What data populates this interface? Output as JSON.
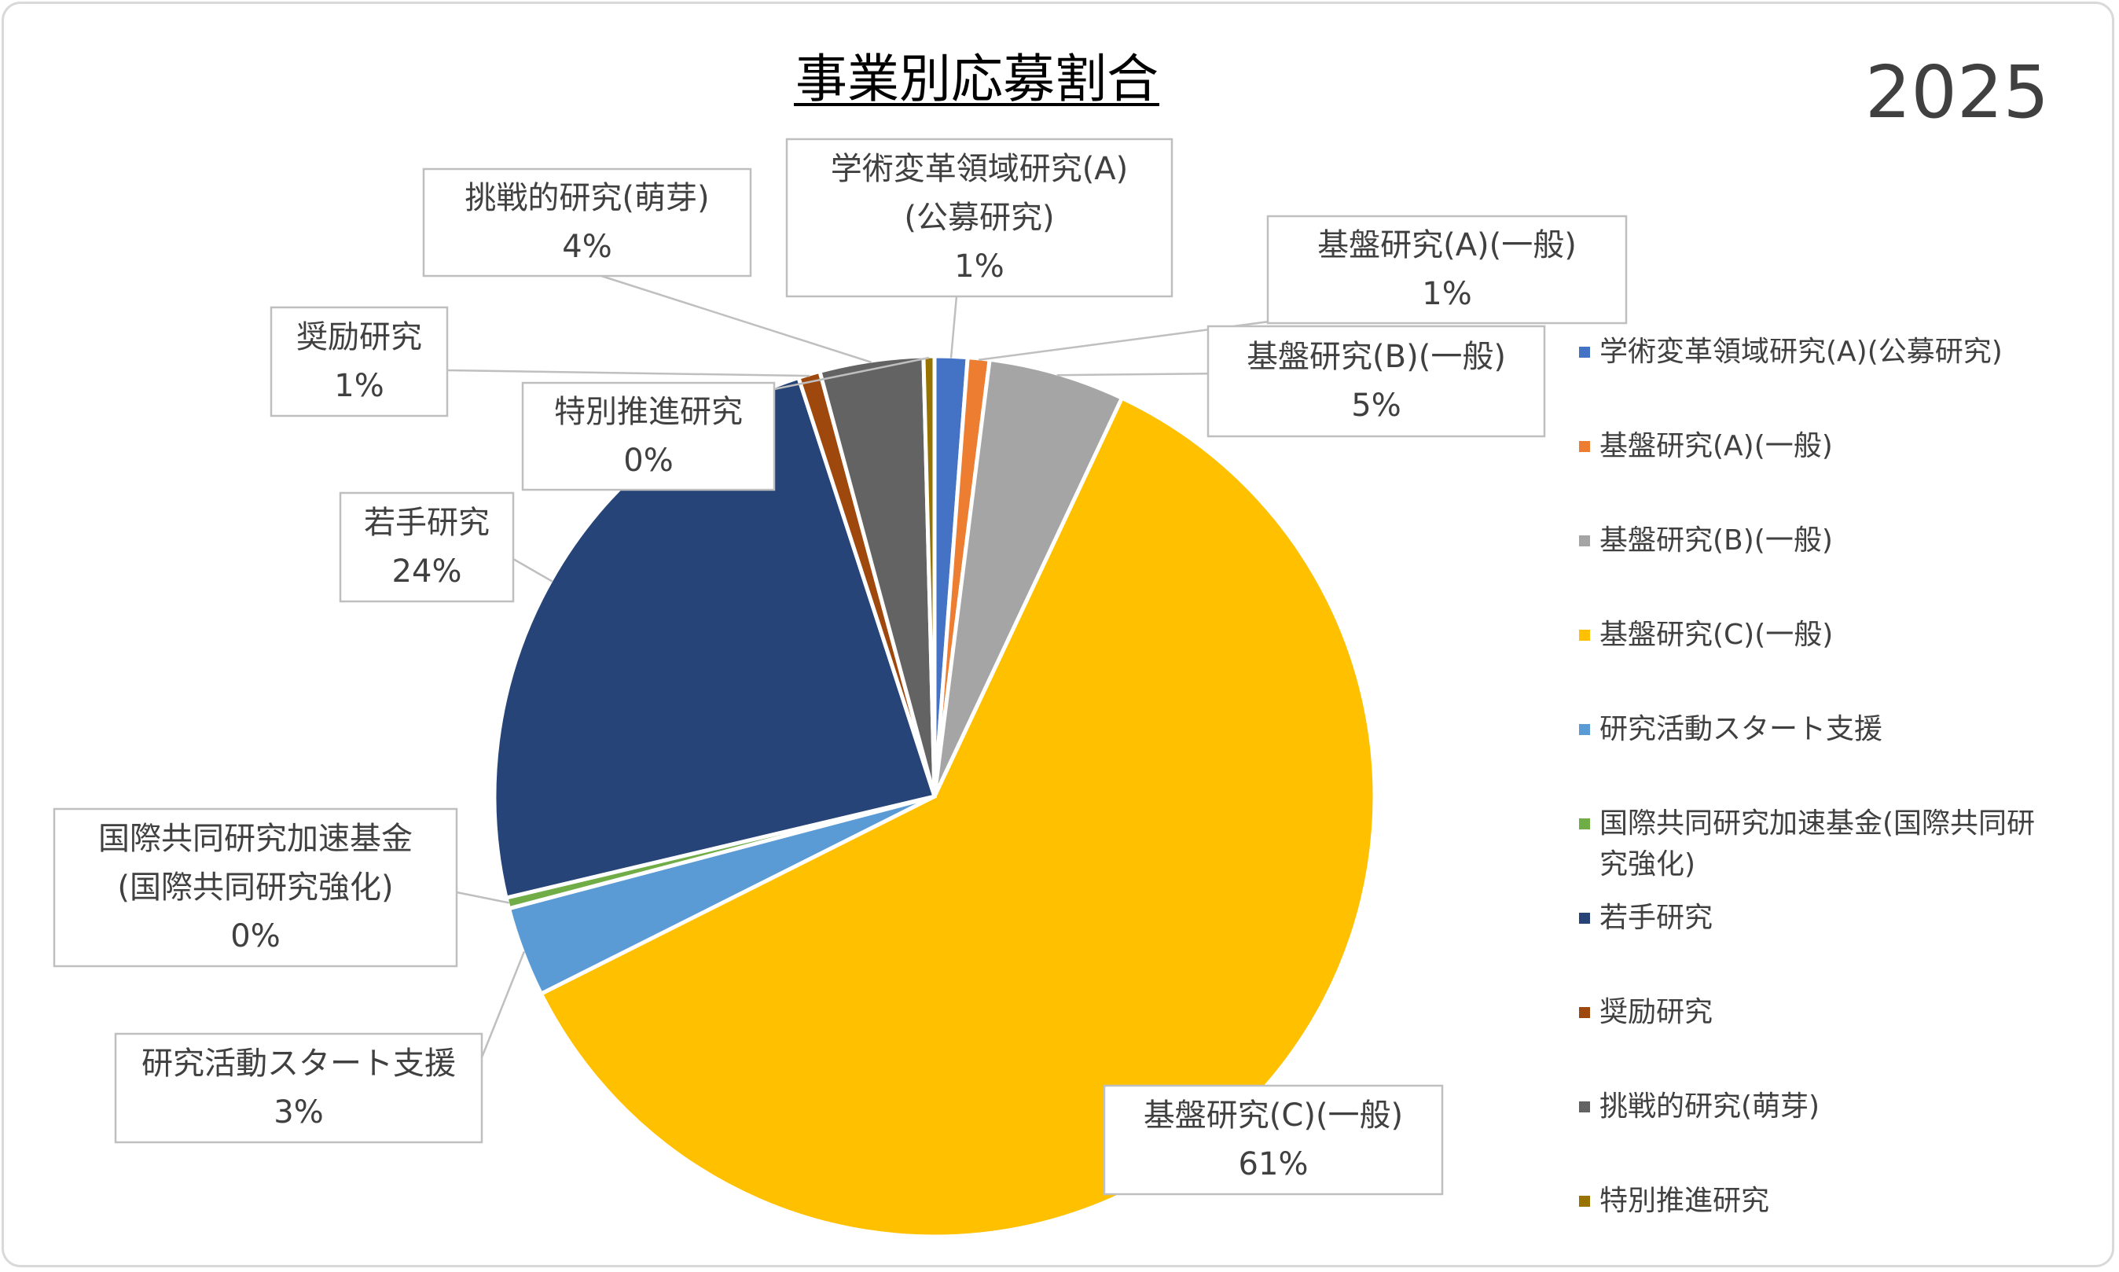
{
  "chart_data": {
    "type": "pie",
    "title": "事業別応募割合",
    "year": "2025",
    "legend_position": "right",
    "data_labels": "category-and-percent",
    "slices": [
      {
        "category": "学術変革領域研究(A)(公募研究)",
        "label_line1": "学術変革領域研究(A)",
        "label_line2": "(公募研究)",
        "value": 1.2,
        "percent_label": "1%",
        "color": "#4472c4"
      },
      {
        "category": "基盤研究(A)(一般)",
        "label_line1": "基盤研究(A)(一般)",
        "label_line2": "",
        "value": 0.8,
        "percent_label": "1%",
        "color": "#ed7d31"
      },
      {
        "category": "基盤研究(B)(一般)",
        "label_line1": "基盤研究(B)(一般)",
        "label_line2": "",
        "value": 5.0,
        "percent_label": "5%",
        "color": "#a5a5a5"
      },
      {
        "category": "基盤研究(C)(一般)",
        "label_line1": "基盤研究(C)(一般)",
        "label_line2": "",
        "value": 60.6,
        "percent_label": "61%",
        "color": "#ffc000"
      },
      {
        "category": "研究活動スタート支援",
        "label_line1": "研究活動スタート支援",
        "label_line2": "",
        "value": 3.3,
        "percent_label": "3%",
        "color": "#5b9bd5"
      },
      {
        "category": "国際共同研究加速基金(国際共同研究強化)",
        "label_line1": "国際共同研究加速基金",
        "label_line2": "(国際共同研究強化)",
        "value": 0.4,
        "percent_label": "0%",
        "color": "#70ad47"
      },
      {
        "category": "若手研究",
        "label_line1": "若手研究",
        "label_line2": "",
        "value": 23.7,
        "percent_label": "24%",
        "color": "#264478"
      },
      {
        "category": "奨励研究",
        "label_line1": "奨励研究",
        "label_line2": "",
        "value": 0.8,
        "percent_label": "1%",
        "color": "#9e480e"
      },
      {
        "category": "挑戦的研究(萌芽)",
        "label_line1": "挑戦的研究(萌芽)",
        "label_line2": "",
        "value": 3.8,
        "percent_label": "4%",
        "color": "#636363"
      },
      {
        "category": "特別推進研究",
        "label_line1": "特別推進研究",
        "label_line2": "",
        "value": 0.4,
        "percent_label": "0%",
        "color": "#997300"
      }
    ],
    "legend": {
      "items": [
        {
          "line1": "学術変革領域研究(A)(公募研究)",
          "line2": ""
        },
        {
          "line1": "基盤研究(A)(一般)",
          "line2": ""
        },
        {
          "line1": "基盤研究(B)(一般)",
          "line2": ""
        },
        {
          "line1": "基盤研究(C)(一般)",
          "line2": ""
        },
        {
          "line1": "研究活動スタート支援",
          "line2": ""
        },
        {
          "line1": "国際共同研究加速基金(国際共同研",
          "line2": "究強化)"
        },
        {
          "line1": "若手研究",
          "line2": ""
        },
        {
          "line1": "奨励研究",
          "line2": ""
        },
        {
          "line1": "挑戦的研究(萌芽)",
          "line2": ""
        },
        {
          "line1": "特別推進研究",
          "line2": ""
        }
      ]
    }
  }
}
